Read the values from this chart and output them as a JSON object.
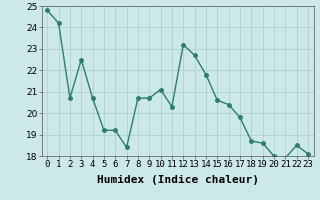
{
  "x": [
    0,
    1,
    2,
    3,
    4,
    5,
    6,
    7,
    8,
    9,
    10,
    11,
    12,
    13,
    14,
    15,
    16,
    17,
    18,
    19,
    20,
    21,
    22,
    23
  ],
  "y": [
    24.8,
    24.2,
    20.7,
    22.5,
    20.7,
    19.2,
    19.2,
    18.4,
    20.7,
    20.7,
    21.1,
    20.3,
    23.2,
    22.7,
    21.8,
    20.6,
    20.4,
    19.8,
    18.7,
    18.6,
    18.0,
    17.9,
    18.5,
    18.1
  ],
  "line_color": "#2e7d6e",
  "marker": "o",
  "markersize": 2.5,
  "linewidth": 1.0,
  "xlabel": "Humidex (Indice chaleur)",
  "ylim": [
    18,
    25
  ],
  "yticks": [
    18,
    19,
    20,
    21,
    22,
    23,
    24,
    25
  ],
  "xlim": [
    -0.5,
    23.5
  ],
  "xtick_labels": [
    "0",
    "1",
    "2",
    "3",
    "4",
    "5",
    "6",
    "7",
    "8",
    "9",
    "10",
    "11",
    "12",
    "13",
    "14",
    "15",
    "16",
    "17",
    "18",
    "19",
    "20",
    "21",
    "22",
    "23"
  ],
  "bg_color": "#cce8e8",
  "grid_color": "#b0d0d0",
  "xlabel_fontsize": 8,
  "tick_fontsize": 6.5
}
